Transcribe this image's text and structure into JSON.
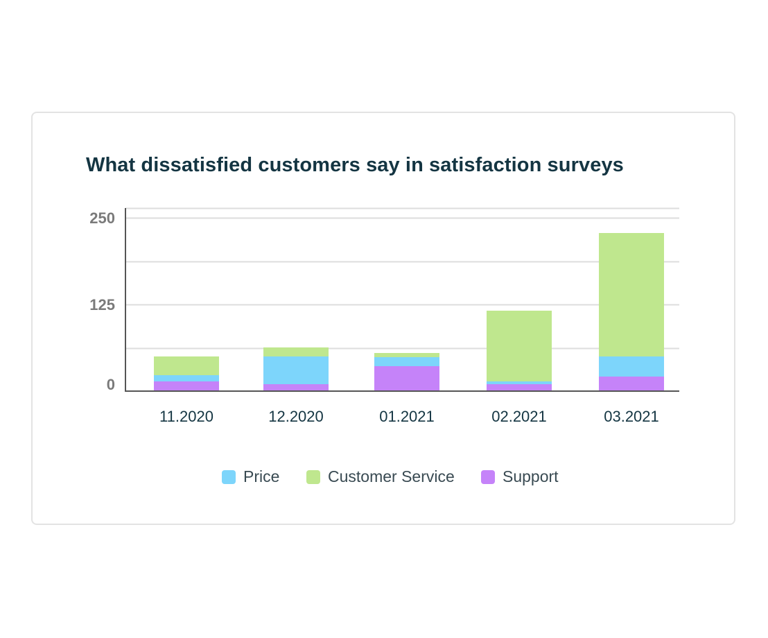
{
  "chart_data": {
    "type": "bar",
    "stacked": true,
    "title": "What dissatisfied customers say in satisfaction surveys",
    "xlabel": "",
    "ylabel": "",
    "categories": [
      "11.2020",
      "12.2020",
      "01.2021",
      "02.2021",
      "03.2021"
    ],
    "y_ticks": [
      "0",
      "125",
      "250"
    ],
    "ylim": [
      0,
      250
    ],
    "grid": true,
    "legend_position": "bottom-center",
    "series": [
      {
        "name": "Support",
        "color": "#c583f9",
        "values": [
          14,
          10,
          36,
          10,
          21
        ]
      },
      {
        "name": "Price",
        "color": "#7dd5fb",
        "values": [
          9,
          40,
          13,
          4,
          29
        ]
      },
      {
        "name": "Customer Service",
        "color": "#bfe78e",
        "values": [
          27,
          13,
          6,
          102,
          178
        ]
      }
    ],
    "legend": [
      "Price",
      "Customer Service",
      "Support"
    ]
  }
}
